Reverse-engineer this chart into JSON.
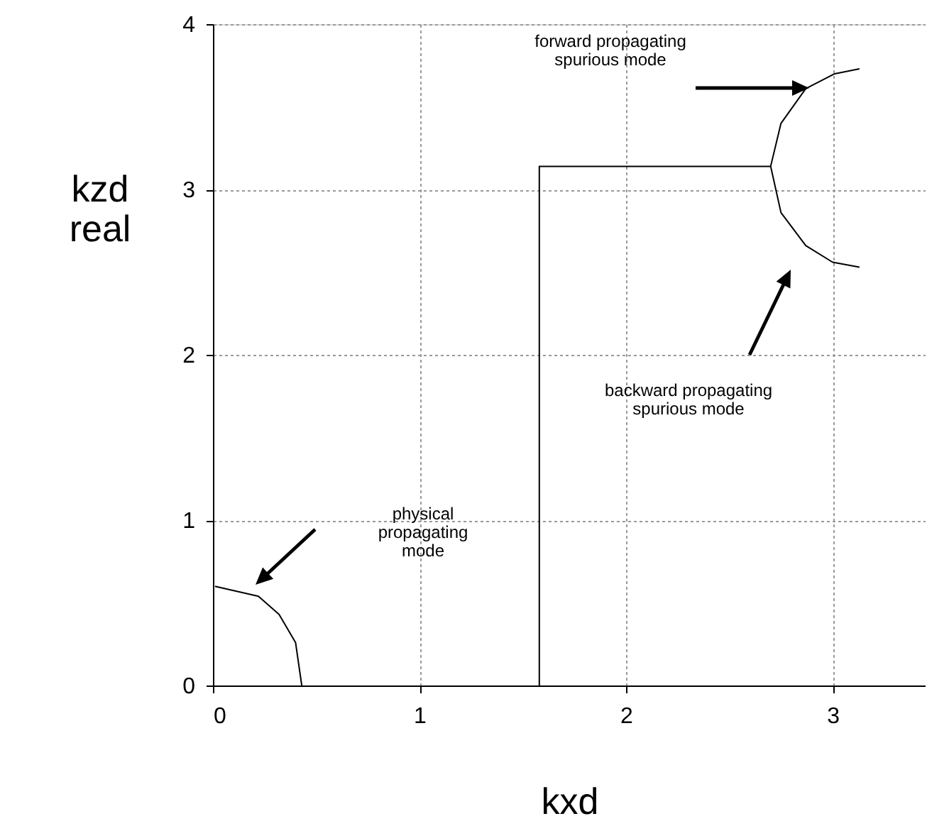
{
  "chart_data": {
    "type": "line",
    "xlabel": "kxd",
    "ylabel": "kzd\nreal",
    "xlim": [
      0,
      3.45
    ],
    "ylim": [
      0,
      4
    ],
    "xticks": [
      0,
      1,
      2,
      3
    ],
    "yticks": [
      0,
      1,
      2,
      3,
      4
    ],
    "grid": true,
    "marker": "none",
    "line_style": "solid",
    "series": [
      {
        "color": "#000000",
        "x": [
          0.01,
          0.22,
          0.32,
          0.4,
          0.43
        ],
        "values": [
          0.6,
          0.54,
          0.43,
          0.26,
          0.0
        ]
      },
      {
        "color": "#000000",
        "x": [
          1.58,
          1.58,
          2.7
        ],
        "values": [
          0.0,
          3.14,
          3.14
        ]
      },
      {
        "color": "#000000",
        "x": [
          3.13,
          3.01,
          2.87,
          2.75,
          2.7,
          2.75,
          2.87,
          3.0,
          3.13
        ],
        "values": [
          3.73,
          3.7,
          3.61,
          3.4,
          3.14,
          2.86,
          2.66,
          2.56,
          2.53
        ]
      }
    ],
    "annotations": [
      "forward propagating\nspurious mode",
      "backward propagating\nspurious mode",
      "physical\npropagating\nmode"
    ]
  }
}
